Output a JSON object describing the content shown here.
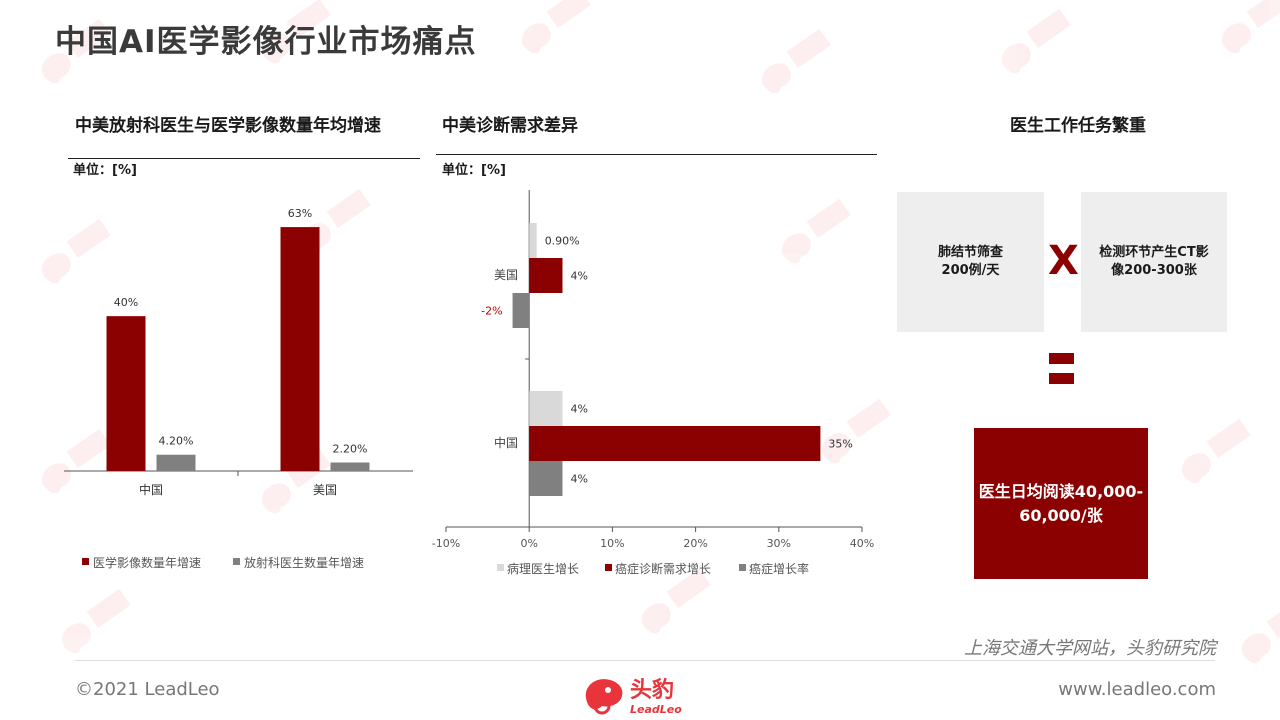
{
  "page": {
    "title": "中国AI医学影像行业市场痛点",
    "source": "上海交通大学网站，头豹研究院",
    "copyright": "©2021 LeadLeo",
    "website": "www.leadleo.com",
    "logo": {
      "cn": "头豹",
      "en": "LeadLeo"
    }
  },
  "colors": {
    "dark_red": "#8b0000",
    "gray": "#808080",
    "light_gray": "#d9d9d9",
    "box_gray": "#eeeeee"
  },
  "chart_data": [
    {
      "type": "bar",
      "title": "中美放射科医生与医学影像数量年均增速",
      "unit": "单位：[%]",
      "categories": [
        "中国",
        "美国"
      ],
      "series": [
        {
          "name": "医学影像数量年增速",
          "values": [
            40,
            63
          ],
          "labels": [
            "40%",
            "63%"
          ]
        },
        {
          "name": "放射科医生数量年增速",
          "values": [
            4.2,
            2.2
          ],
          "labels": [
            "4.20%",
            "2.20%"
          ]
        }
      ],
      "ylim": [
        0,
        70
      ],
      "legend": "bottom",
      "grid": false
    },
    {
      "type": "bar",
      "orientation": "horizontal",
      "title": "中美诊断需求差异",
      "unit": "单位：[%]",
      "categories": [
        "美国",
        "中国"
      ],
      "series": [
        {
          "name": "病理医生增长",
          "values": [
            0.9,
            4
          ],
          "labels": [
            "0.90%",
            "4%"
          ]
        },
        {
          "name": "癌症诊断需求增长",
          "values": [
            4,
            35
          ],
          "labels": [
            "4%",
            "35%"
          ]
        },
        {
          "name": "癌症增长率",
          "values": [
            -2,
            4
          ],
          "labels": [
            "-2%",
            "4%"
          ]
        }
      ],
      "xlim": [
        -10,
        40
      ],
      "xticks": [
        "-10%",
        "0%",
        "10%",
        "20%",
        "30%",
        "40%"
      ],
      "legend": "bottom",
      "grid": false
    }
  ],
  "workload": {
    "title": "医生工作任务繁重",
    "box1": [
      "肺结节筛查",
      "200例/天"
    ],
    "times_symbol": "X",
    "box2": [
      "检测环节产生CT影",
      "像200-300张"
    ],
    "result": {
      "line1": "医生日均阅读40,000-",
      "line2": "60,000/张"
    }
  }
}
